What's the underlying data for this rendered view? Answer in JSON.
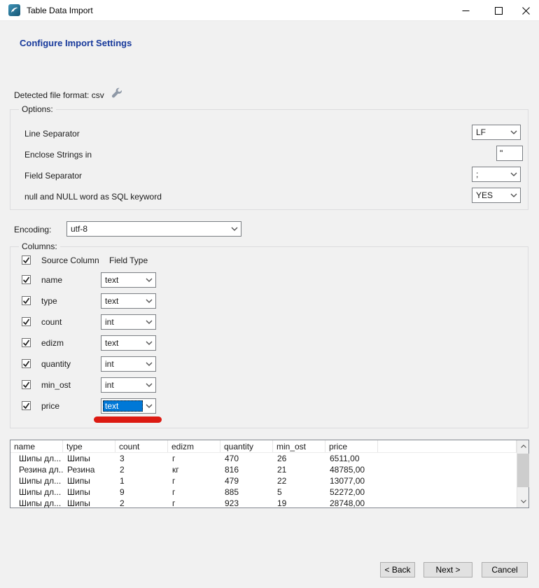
{
  "window": {
    "title": "Table Data Import",
    "controls": {
      "minimize": "minimize",
      "maximize": "maximize",
      "close": "close"
    }
  },
  "heading": "Configure Import Settings",
  "file_format": {
    "text": "Detected file format: csv"
  },
  "options": {
    "legend": "Options:",
    "rows": [
      {
        "label": "Line Separator",
        "control": "select",
        "value": "LF"
      },
      {
        "label": "Enclose Strings in",
        "control": "input",
        "value": "\""
      },
      {
        "label": "Field Separator",
        "control": "select",
        "value": ";"
      },
      {
        "label": "null and NULL word as SQL keyword",
        "control": "select",
        "value": "YES"
      }
    ]
  },
  "encoding": {
    "label": "Encoding:",
    "value": "utf-8"
  },
  "columns": {
    "legend": "Columns:",
    "header": {
      "source": "Source Column",
      "field_type": "Field Type"
    },
    "rows": [
      {
        "name": "name",
        "field_type": "text",
        "checked": true,
        "focused": false
      },
      {
        "name": "type",
        "field_type": "text",
        "checked": true,
        "focused": false
      },
      {
        "name": "count",
        "field_type": "int",
        "checked": true,
        "focused": false
      },
      {
        "name": "edizm",
        "field_type": "text",
        "checked": true,
        "focused": false
      },
      {
        "name": "quantity",
        "field_type": "int",
        "checked": true,
        "focused": false
      },
      {
        "name": "min_ost",
        "field_type": "int",
        "checked": true,
        "focused": false
      },
      {
        "name": "price",
        "field_type": "text",
        "checked": true,
        "focused": true
      }
    ]
  },
  "preview": {
    "headers": [
      "name",
      "type",
      "count",
      "edizm",
      "quantity",
      "min_ost",
      "price"
    ],
    "rows": [
      [
        "Шипы дл...",
        "Шипы",
        "3",
        "г",
        "470",
        "26",
        "6511,00"
      ],
      [
        "Резина дл...",
        "Резина",
        "2",
        "кг",
        "816",
        "21",
        "48785,00"
      ],
      [
        "Шипы дл...",
        "Шипы",
        "1",
        "г",
        "479",
        "22",
        "13077,00"
      ],
      [
        "Шипы дл...",
        "Шипы",
        "9",
        "г",
        "885",
        "5",
        "52272,00"
      ],
      [
        "Шипы дл...",
        "Шипы",
        "2",
        "г",
        "923",
        "19",
        "28748,00"
      ]
    ]
  },
  "footer": {
    "back": "< Back",
    "next": "Next >",
    "cancel": "Cancel"
  },
  "icons": {
    "app": "mysql-dolphin",
    "wrench": "wrench-tool",
    "checkbox_glyph": "check-mark",
    "dropdown_glyph": "chevron-down"
  },
  "colors": {
    "heading": "#17399b",
    "selection": "#0078d7",
    "annotation": "#dc1a12",
    "body_background": "#f1f1f1"
  }
}
